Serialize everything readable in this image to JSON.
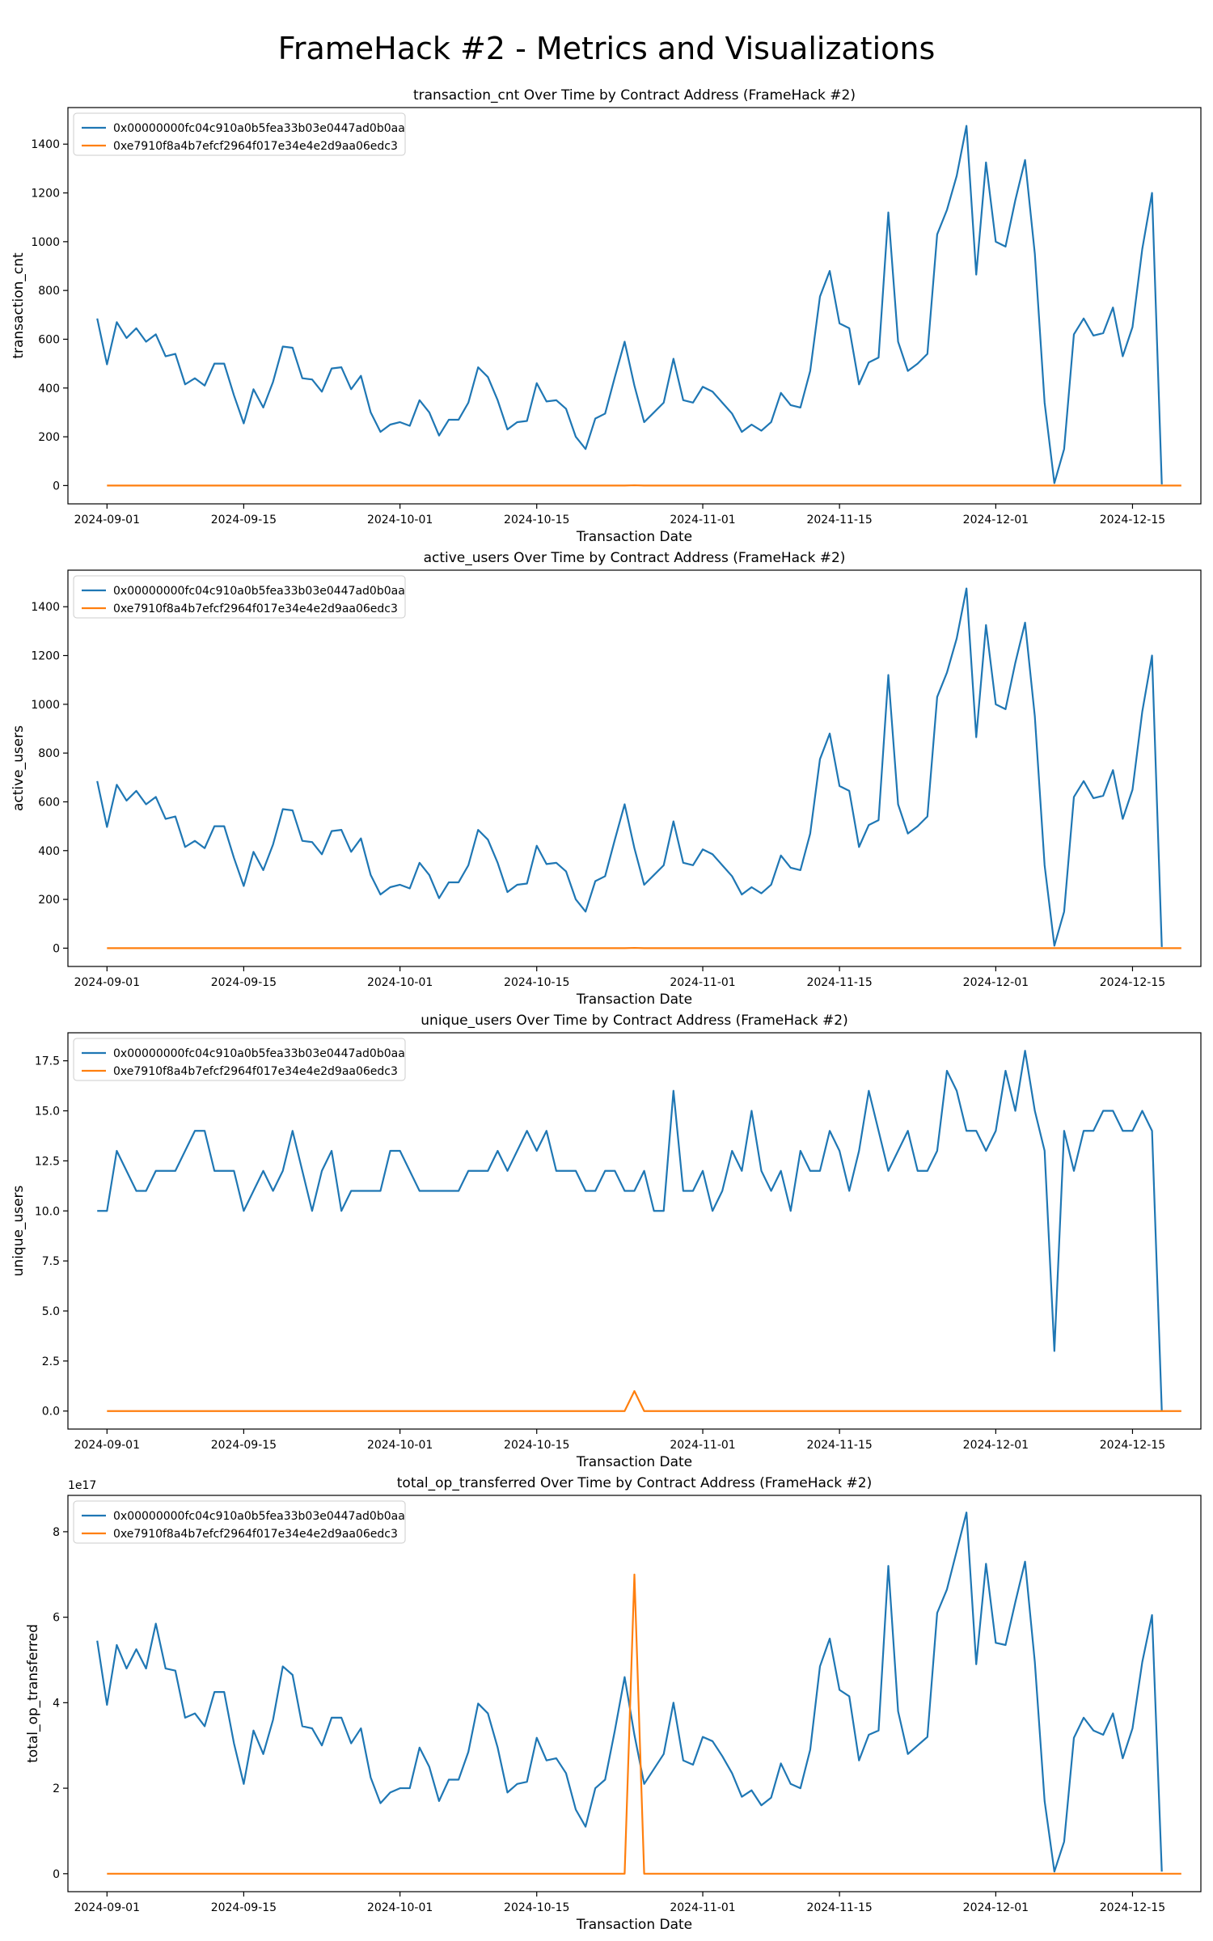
{
  "figure": {
    "suptitle": "FrameHack #2 - Metrics and Visualizations"
  },
  "colors": {
    "series_0": "#1f77b4",
    "series_1": "#ff7f0e"
  },
  "chart_data": [
    {
      "type": "line",
      "title": "transaction_cnt Over Time by Contract Address (FrameHack #2)",
      "xlabel": "Transaction Date",
      "ylabel": "transaction_cnt",
      "xlim": [
        "2024-08-28",
        "2024-12-22"
      ],
      "ylim": [
        -75,
        1550
      ],
      "yticks": [
        0,
        200,
        400,
        600,
        800,
        1000,
        1200,
        1400
      ],
      "ytick_labels": [
        "0",
        "200",
        "400",
        "600",
        "800",
        "1000",
        "1200",
        "1400"
      ],
      "xticks": [
        "2024-09-01",
        "2024-09-15",
        "2024-10-01",
        "2024-10-15",
        "2024-11-01",
        "2024-11-15",
        "2024-12-01",
        "2024-12-15"
      ],
      "legend": "upper-left",
      "grid": false,
      "series": [
        {
          "name": "0x00000000fc04c910a0b5fea33b03e0447ad0b0aa",
          "x_start": "2024-08-31",
          "values": [
            685,
            497,
            670,
            605,
            645,
            590,
            620,
            530,
            540,
            415,
            440,
            410,
            500,
            500,
            370,
            255,
            395,
            320,
            425,
            570,
            565,
            440,
            435,
            385,
            480,
            485,
            395,
            450,
            300,
            220,
            250,
            260,
            245,
            350,
            300,
            205,
            270,
            270,
            340,
            485,
            445,
            350,
            230,
            260,
            265,
            420,
            345,
            350,
            315,
            200,
            150,
            275,
            295,
            445,
            590,
            410,
            260,
            300,
            340,
            520,
            350,
            340,
            405,
            385,
            340,
            295,
            220,
            250,
            225,
            260,
            380,
            330,
            320,
            470,
            775,
            880,
            665,
            645,
            415,
            505,
            525,
            1120,
            590,
            470,
            500,
            540,
            1030,
            1130,
            1270,
            1475,
            865,
            1325,
            1000,
            980,
            1170,
            1335,
            950,
            340,
            10,
            150,
            620,
            685,
            615,
            625,
            730,
            530,
            650,
            970,
            1200,
            5
          ]
        },
        {
          "name": "0xe7910f8a4b7efcf2964f017e34e4e2d9aa06edc3",
          "x_start": "2024-09-01",
          "points": [
            [
              "2024-09-01",
              0
            ],
            [
              "2024-10-24",
              0
            ],
            [
              "2024-10-25",
              1
            ],
            [
              "2024-10-26",
              0
            ],
            [
              "2024-12-20",
              0
            ]
          ]
        }
      ]
    },
    {
      "type": "line",
      "title": "active_users Over Time by Contract Address (FrameHack #2)",
      "xlabel": "Transaction Date",
      "ylabel": "active_users",
      "xlim": [
        "2024-08-28",
        "2024-12-22"
      ],
      "ylim": [
        -75,
        1550
      ],
      "yticks": [
        0,
        200,
        400,
        600,
        800,
        1000,
        1200,
        1400
      ],
      "ytick_labels": [
        "0",
        "200",
        "400",
        "600",
        "800",
        "1000",
        "1200",
        "1400"
      ],
      "xticks": [
        "2024-09-01",
        "2024-09-15",
        "2024-10-01",
        "2024-10-15",
        "2024-11-01",
        "2024-11-15",
        "2024-12-01",
        "2024-12-15"
      ],
      "legend": "upper-left",
      "grid": false,
      "series": [
        {
          "name": "0x00000000fc04c910a0b5fea33b03e0447ad0b0aa",
          "x_start": "2024-08-31",
          "values": [
            685,
            497,
            670,
            605,
            645,
            590,
            620,
            530,
            540,
            415,
            440,
            410,
            500,
            500,
            370,
            255,
            395,
            320,
            425,
            570,
            565,
            440,
            435,
            385,
            480,
            485,
            395,
            450,
            300,
            220,
            250,
            260,
            245,
            350,
            300,
            205,
            270,
            270,
            340,
            485,
            445,
            350,
            230,
            260,
            265,
            420,
            345,
            350,
            315,
            200,
            150,
            275,
            295,
            445,
            590,
            410,
            260,
            300,
            340,
            520,
            350,
            340,
            405,
            385,
            340,
            295,
            220,
            250,
            225,
            260,
            380,
            330,
            320,
            470,
            775,
            880,
            665,
            645,
            415,
            505,
            525,
            1120,
            590,
            470,
            500,
            540,
            1030,
            1130,
            1270,
            1475,
            865,
            1325,
            1000,
            980,
            1170,
            1335,
            950,
            340,
            10,
            150,
            620,
            685,
            615,
            625,
            730,
            530,
            650,
            970,
            1200,
            5
          ]
        },
        {
          "name": "0xe7910f8a4b7efcf2964f017e34e4e2d9aa06edc3",
          "x_start": "2024-09-01",
          "points": [
            [
              "2024-09-01",
              0
            ],
            [
              "2024-10-24",
              0
            ],
            [
              "2024-10-25",
              1
            ],
            [
              "2024-10-26",
              0
            ],
            [
              "2024-12-20",
              0
            ]
          ]
        }
      ]
    },
    {
      "type": "line",
      "title": "unique_users Over Time by Contract Address (FrameHack #2)",
      "xlabel": "Transaction Date",
      "ylabel": "unique_users",
      "xlim": [
        "2024-08-28",
        "2024-12-22"
      ],
      "ylim": [
        -0.9,
        18.9
      ],
      "yticks": [
        0,
        2.5,
        5,
        7.5,
        10,
        12.5,
        15,
        17.5
      ],
      "ytick_labels": [
        "0.0",
        "2.5",
        "5.0",
        "7.5",
        "10.0",
        "12.5",
        "15.0",
        "17.5"
      ],
      "xticks": [
        "2024-09-01",
        "2024-09-15",
        "2024-10-01",
        "2024-10-15",
        "2024-11-01",
        "2024-11-15",
        "2024-12-01",
        "2024-12-15"
      ],
      "legend": "upper-left",
      "grid": false,
      "series": [
        {
          "name": "0x00000000fc04c910a0b5fea33b03e0447ad0b0aa",
          "x_start": "2024-08-31",
          "values": [
            10,
            10,
            13,
            12,
            11,
            11,
            12,
            12,
            12,
            13,
            14,
            14,
            12,
            12,
            12,
            10,
            11,
            12,
            11,
            12,
            14,
            12,
            10,
            12,
            13,
            10,
            11,
            11,
            11,
            11,
            13,
            13,
            12,
            11,
            11,
            11,
            11,
            11,
            12,
            12,
            12,
            13,
            12,
            13,
            14,
            13,
            14,
            12,
            12,
            12,
            11,
            11,
            12,
            12,
            11,
            11,
            12,
            10,
            10,
            16,
            11,
            11,
            12,
            10,
            11,
            13,
            12,
            15,
            12,
            11,
            12,
            10,
            13,
            12,
            12,
            14,
            13,
            11,
            13,
            16,
            14,
            12,
            13,
            14,
            12,
            12,
            13,
            17,
            16,
            14,
            14,
            13,
            14,
            17,
            15,
            18,
            15,
            13,
            3,
            14,
            12,
            14,
            14,
            15,
            15,
            14,
            14,
            15,
            14,
            0
          ]
        },
        {
          "name": "0xe7910f8a4b7efcf2964f017e34e4e2d9aa06edc3",
          "x_start": "2024-09-01",
          "points": [
            [
              "2024-09-01",
              0
            ],
            [
              "2024-10-24",
              0
            ],
            [
              "2024-10-25",
              1
            ],
            [
              "2024-10-26",
              0
            ],
            [
              "2024-12-20",
              0
            ]
          ]
        }
      ]
    },
    {
      "type": "line",
      "title": "total_op_transferred Over Time by Contract Address (FrameHack #2)",
      "xlabel": "Transaction Date",
      "ylabel": "total_op_transferred",
      "offset_label": "1e17",
      "xlim": [
        "2024-08-28",
        "2024-12-22"
      ],
      "ylim": [
        -0.42,
        8.85
      ],
      "yticks": [
        0,
        2,
        4,
        6,
        8
      ],
      "ytick_labels": [
        "0",
        "2",
        "4",
        "6",
        "8"
      ],
      "xticks": [
        "2024-09-01",
        "2024-09-15",
        "2024-10-01",
        "2024-10-15",
        "2024-11-01",
        "2024-11-15",
        "2024-12-01",
        "2024-12-15"
      ],
      "legend": "upper-left",
      "grid": false,
      "series": [
        {
          "name": "0x00000000fc04c910a0b5fea33b03e0447ad0b0aa",
          "x_start": "2024-08-31",
          "values": [
            5.45,
            3.95,
            5.35,
            4.8,
            5.25,
            4.8,
            5.85,
            4.8,
            4.75,
            3.65,
            3.75,
            3.45,
            4.25,
            4.25,
            3.05,
            2.1,
            3.35,
            2.8,
            3.6,
            4.85,
            4.65,
            3.45,
            3.4,
            3.0,
            3.65,
            3.65,
            3.05,
            3.4,
            2.25,
            1.65,
            1.9,
            2.0,
            2.0,
            2.95,
            2.5,
            1.7,
            2.2,
            2.2,
            2.85,
            3.98,
            3.75,
            2.95,
            1.9,
            2.1,
            2.15,
            3.18,
            2.65,
            2.7,
            2.35,
            1.5,
            1.1,
            2.0,
            2.2,
            3.35,
            4.6,
            3.25,
            2.1,
            2.45,
            2.8,
            4.0,
            2.65,
            2.55,
            3.2,
            3.1,
            2.75,
            2.35,
            1.8,
            1.95,
            1.6,
            1.78,
            2.58,
            2.1,
            2.0,
            2.9,
            4.85,
            5.5,
            4.3,
            4.15,
            2.65,
            3.25,
            3.35,
            7.2,
            3.8,
            2.8,
            3.0,
            3.2,
            6.1,
            6.65,
            7.55,
            8.45,
            4.9,
            7.25,
            5.4,
            5.35,
            6.35,
            7.3,
            4.95,
            1.7,
            0.05,
            0.75,
            3.18,
            3.65,
            3.35,
            3.25,
            3.75,
            2.7,
            3.4,
            4.95,
            6.05,
            0.05
          ]
        },
        {
          "name": "0xe7910f8a4b7efcf2964f017e34e4e2d9aa06edc3",
          "x_start": "2024-09-01",
          "points": [
            [
              "2024-09-01",
              0
            ],
            [
              "2024-10-24",
              0
            ],
            [
              "2024-10-25",
              7.0
            ],
            [
              "2024-10-26",
              0
            ],
            [
              "2024-12-20",
              0
            ]
          ]
        }
      ]
    }
  ]
}
